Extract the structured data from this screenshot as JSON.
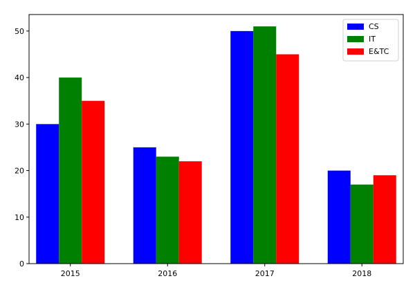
{
  "chart_data": {
    "type": "bar",
    "title": "",
    "xlabel": "",
    "ylabel": "",
    "categories": [
      "2015",
      "2016",
      "2017",
      "2018"
    ],
    "series": [
      {
        "name": "CS",
        "color": "#0000ff",
        "values": [
          30,
          25,
          50,
          20
        ]
      },
      {
        "name": "IT",
        "color": "#008000",
        "values": [
          40,
          23,
          51,
          17
        ]
      },
      {
        "name": "E&TC",
        "color": "#ff0000",
        "values": [
          35,
          22,
          45,
          19
        ]
      }
    ],
    "ylim": [
      0,
      53.55
    ],
    "yticks": [
      0,
      10,
      20,
      30,
      40,
      50
    ],
    "grid": false,
    "legend_position": "top-right"
  }
}
